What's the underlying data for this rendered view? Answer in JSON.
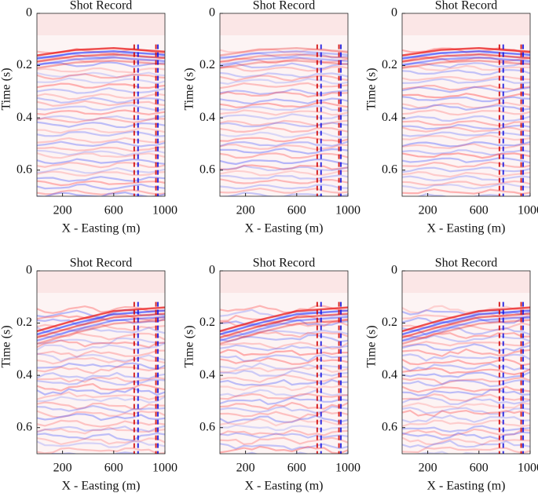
{
  "chart_data": [
    {
      "type": "image",
      "title": "Shot Record",
      "xlabel": "X - Easting (m)",
      "ylabel": "Time (s)",
      "xlim": [
        0,
        1000
      ],
      "ylim": [
        0,
        0.7
      ],
      "y_inverted": true,
      "xticks": [
        200,
        600,
        1000
      ],
      "yticks": [
        0,
        {
          "value": 0.2,
          "label": "0.2"
        },
        {
          "value": 0.4,
          "label": "0.4"
        },
        {
          "value": 0.6,
          "label": "0.6"
        }
      ]
    },
    {
      "type": "image",
      "title": "Shot Record",
      "xlabel": "X - Easting (m)",
      "ylabel": "Time (s)",
      "xlim": [
        0,
        1000
      ],
      "ylim": [
        0,
        0.7
      ],
      "y_inverted": true,
      "xticks": [
        200,
        600,
        1000
      ],
      "yticks": [
        0,
        {
          "value": 0.2,
          "label": "0.2"
        },
        {
          "value": 0.4,
          "label": "0.4"
        },
        {
          "value": 0.6,
          "label": "0.6"
        }
      ]
    },
    {
      "type": "image",
      "title": "Shot Record",
      "xlabel": "X - Easting (m)",
      "ylabel": "Time (s)",
      "xlim": [
        0,
        1000
      ],
      "ylim": [
        0,
        0.7
      ],
      "y_inverted": true,
      "xticks": [
        200,
        600,
        1000
      ],
      "yticks": [
        0,
        {
          "value": 0.2,
          "label": "0.2"
        },
        {
          "value": 0.4,
          "label": "0.4"
        },
        {
          "value": 0.6,
          "label": "0.6"
        }
      ]
    },
    {
      "type": "image",
      "title": "Shot Record",
      "xlabel": "X - Easting (m)",
      "ylabel": "Time (s)",
      "xlim": [
        0,
        1000
      ],
      "ylim": [
        0,
        0.7
      ],
      "y_inverted": true,
      "xticks": [
        200,
        600,
        1000
      ],
      "yticks": [
        0,
        {
          "value": 0.2,
          "label": "0.2"
        },
        {
          "value": 0.4,
          "label": "0.4"
        },
        {
          "value": 0.6,
          "label": "0.6"
        }
      ]
    },
    {
      "type": "image",
      "title": "Shot Record",
      "xlabel": "X - Easting (m)",
      "ylabel": "Time (s)",
      "xlim": [
        0,
        1000
      ],
      "ylim": [
        0,
        0.7
      ],
      "y_inverted": true,
      "xticks": [
        200,
        600,
        1000
      ],
      "yticks": [
        0,
        {
          "value": 0.2,
          "label": "0.2"
        },
        {
          "value": 0.4,
          "label": "0.4"
        },
        {
          "value": 0.6,
          "label": "0.6"
        }
      ]
    },
    {
      "type": "image",
      "title": "Shot Record",
      "xlabel": "X - Easting (m)",
      "ylabel": "Time (s)",
      "xlim": [
        0,
        1000
      ],
      "ylim": [
        0,
        0.7
      ],
      "y_inverted": true,
      "xticks": [
        200,
        600,
        1000
      ],
      "yticks": [
        0,
        {
          "value": 0.2,
          "label": "0.2"
        },
        {
          "value": 0.4,
          "label": "0.4"
        },
        {
          "value": 0.6,
          "label": "0.6"
        }
      ]
    }
  ]
}
